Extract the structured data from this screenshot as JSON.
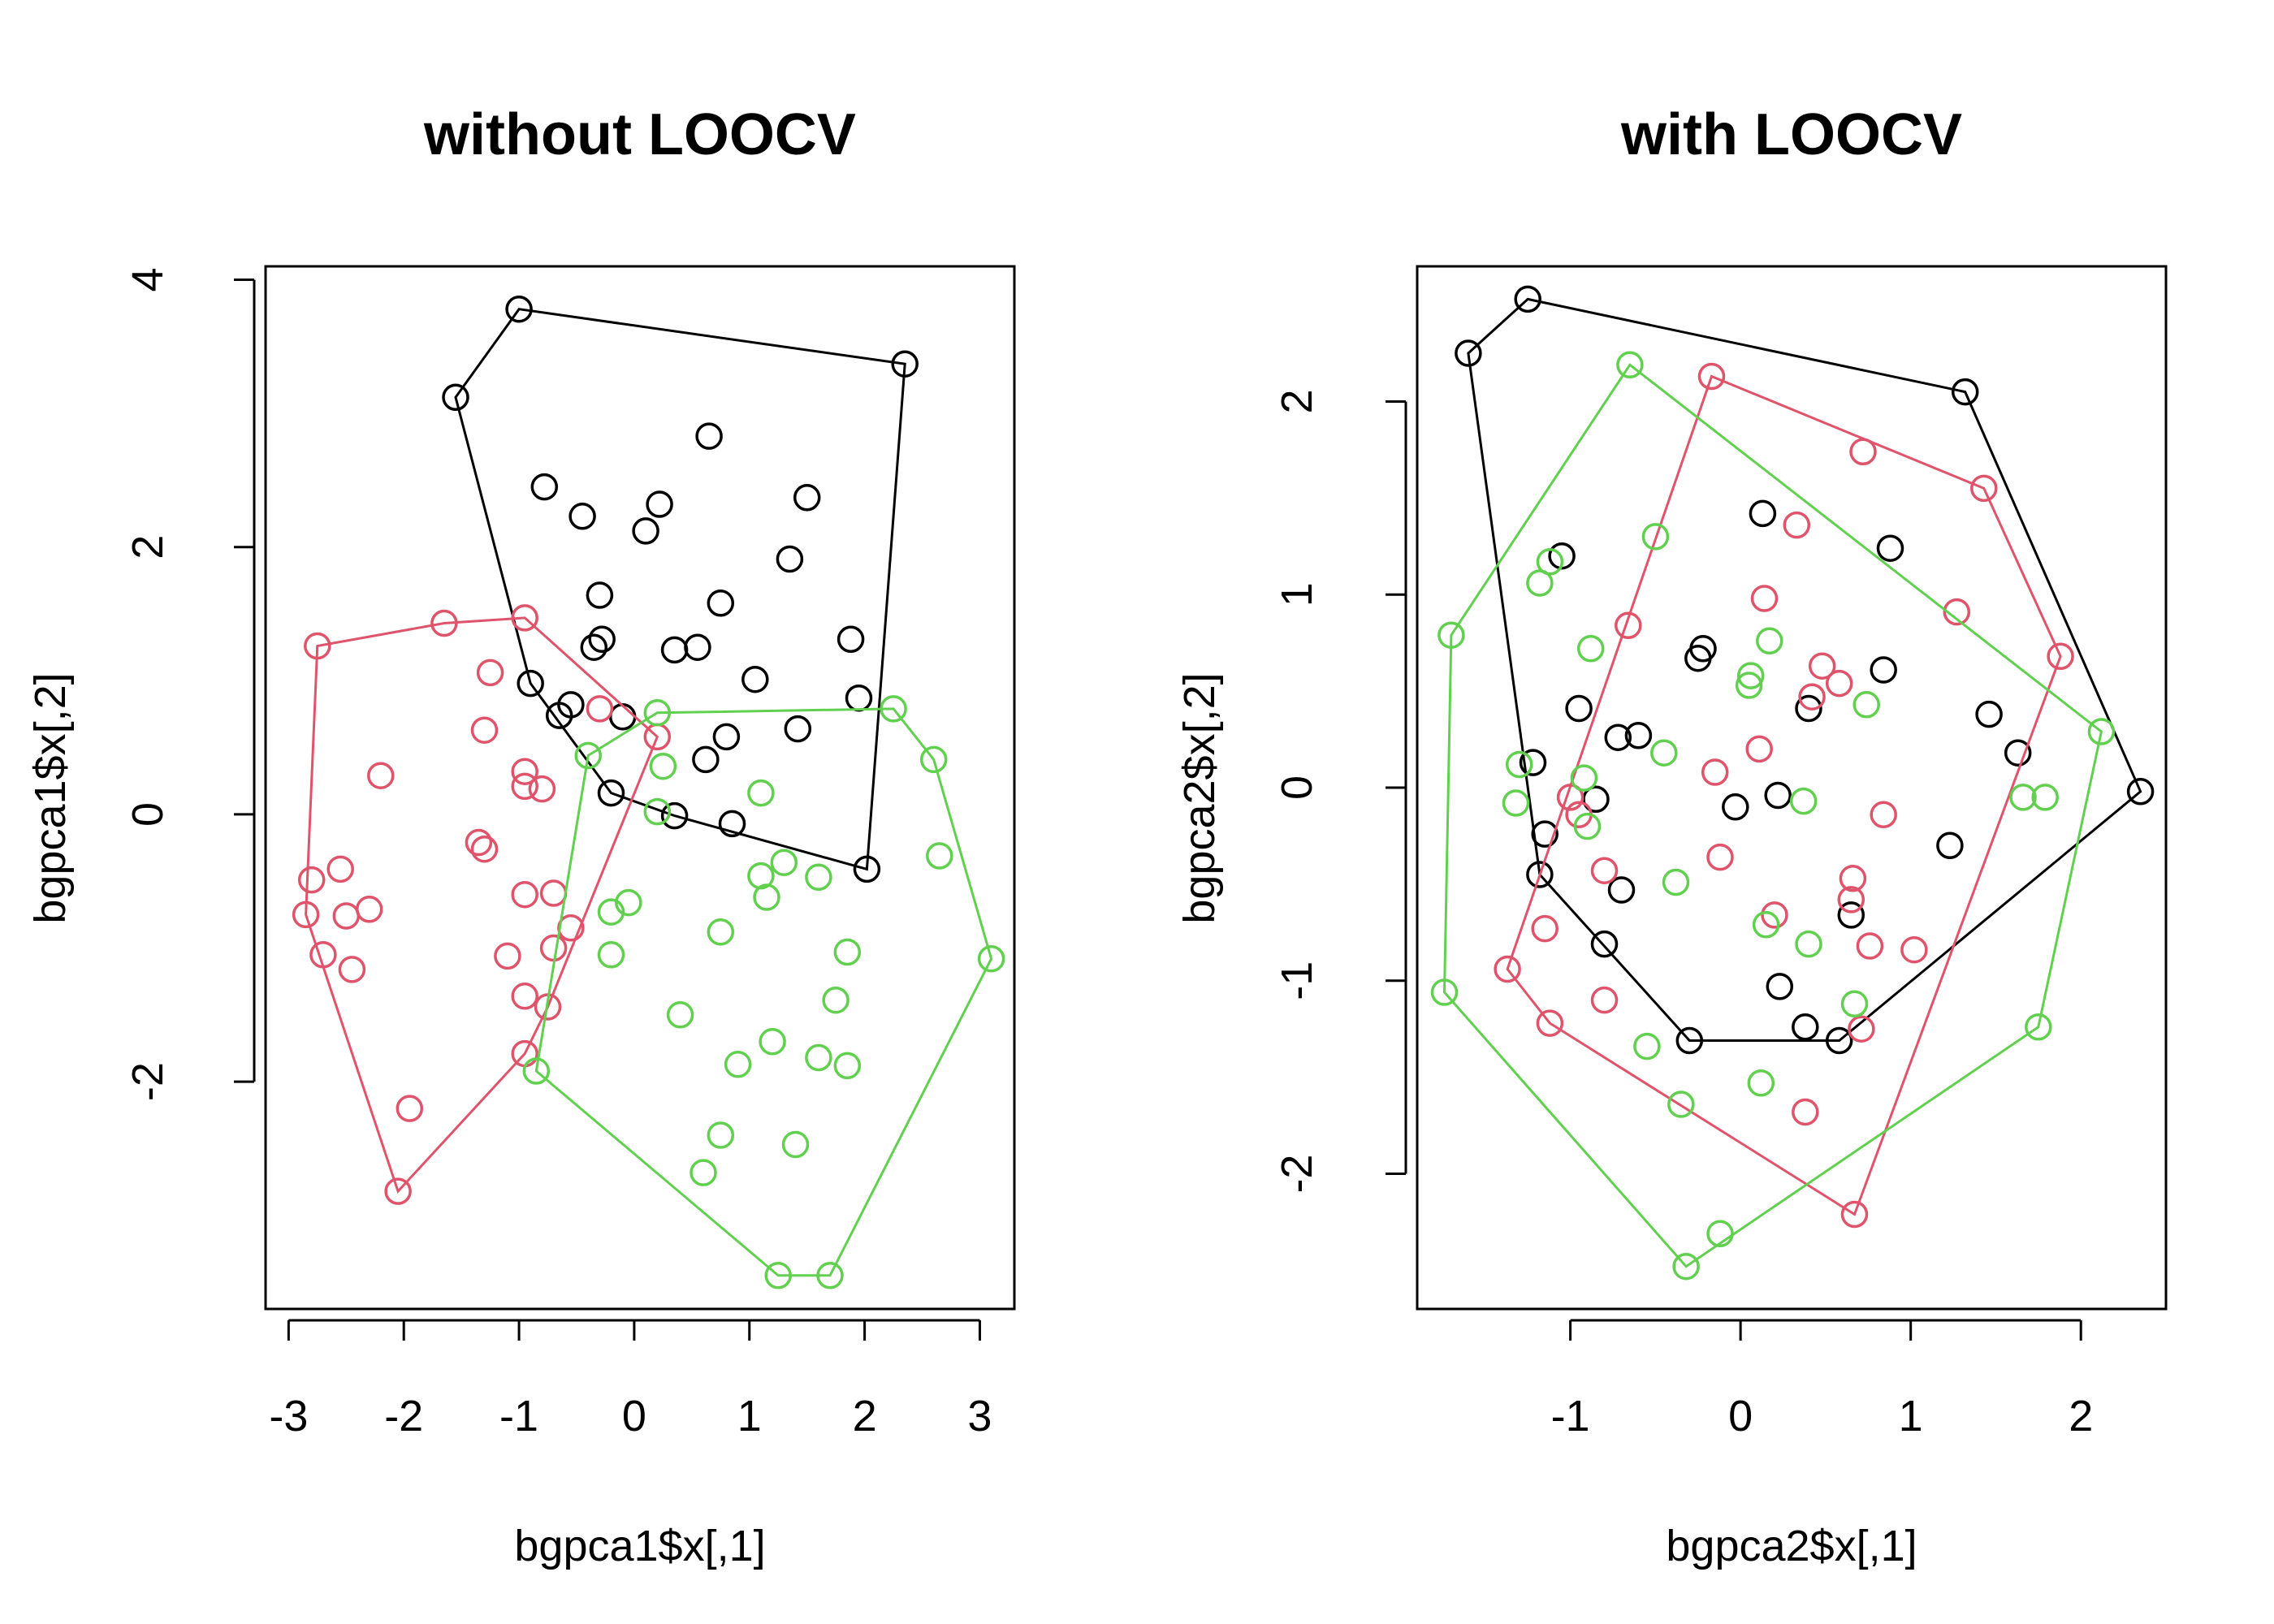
{
  "colors": {
    "series_1": "#000000",
    "series_2": "#DF536B",
    "series_3": "#61D04F",
    "axis": "#000000"
  },
  "chart_data": [
    {
      "type": "scatter",
      "title": "without LOOCV",
      "xlabel": "bgpca1$x[,1]",
      "ylabel": "bgpca1$x[,2]",
      "xlim": [
        -3.2,
        3.3
      ],
      "ylim": [
        -3.7,
        4.1
      ],
      "xticks": [
        -3,
        -2,
        -1,
        0,
        1,
        2,
        3
      ],
      "yticks": [
        -2,
        0,
        2,
        4
      ],
      "grid": false,
      "legend": "none",
      "convex_hulls": true,
      "series": [
        {
          "color": "#000000",
          "x": [
            -1.0,
            2.35,
            -1.55,
            0.65,
            -0.78,
            -0.45,
            0.1,
            0.22,
            1.5,
            1.35,
            -0.3,
            0.75,
            -0.35,
            -0.28,
            0.35,
            0.55,
            1.05,
            1.88,
            1.95,
            -0.9,
            -0.55,
            -0.65,
            -0.1,
            1.42,
            0.8,
            0.62,
            -0.2,
            0.35,
            0.85,
            2.02
          ],
          "y": [
            3.78,
            3.37,
            3.12,
            2.83,
            2.45,
            2.23,
            2.12,
            2.32,
            2.37,
            1.91,
            1.64,
            1.58,
            1.25,
            1.31,
            1.23,
            1.25,
            1.01,
            1.31,
            0.87,
            0.98,
            0.82,
            0.74,
            0.73,
            0.64,
            0.58,
            0.41,
            0.16,
            -0.01,
            -0.07,
            -0.41
          ]
        },
        {
          "color": "#DF536B",
          "x": [
            -2.75,
            -1.65,
            -0.95,
            -1.25,
            -2.2,
            -1.3,
            -0.95,
            -0.8,
            -0.95,
            -0.3,
            0.2,
            -1.35,
            -1.3,
            -2.55,
            -2.8,
            -2.3,
            -2.85,
            -2.5,
            -0.95,
            -0.7,
            -0.55,
            -2.7,
            -2.45,
            -1.1,
            -0.7,
            -0.95,
            -0.75,
            -0.95,
            -1.95,
            -2.05
          ],
          "y": [
            1.26,
            1.43,
            1.47,
            1.06,
            0.29,
            0.63,
            0.32,
            0.19,
            0.21,
            0.79,
            0.58,
            -0.21,
            -0.26,
            -0.41,
            -0.49,
            -0.71,
            -0.75,
            -0.76,
            -0.6,
            -0.59,
            -0.85,
            -1.05,
            -1.16,
            -1.06,
            -1.0,
            -1.36,
            -1.44,
            -1.79,
            -2.2,
            -2.82
          ]
        },
        {
          "color": "#61D04F",
          "x": [
            0.2,
            2.25,
            -0.4,
            0.25,
            2.6,
            1.1,
            0.2,
            2.65,
            1.3,
            1.1,
            1.6,
            1.15,
            -0.05,
            -0.2,
            0.75,
            -0.2,
            1.85,
            3.1,
            1.75,
            0.4,
            1.2,
            -0.85,
            0.9,
            1.6,
            1.85,
            0.75,
            1.4,
            0.6,
            1.25,
            1.7
          ],
          "y": [
            0.76,
            0.79,
            0.44,
            0.36,
            0.41,
            0.16,
            0.02,
            -0.31,
            -0.36,
            -0.46,
            -0.47,
            -0.62,
            -0.66,
            -0.73,
            -0.88,
            -1.05,
            -1.03,
            -1.08,
            -1.39,
            -1.5,
            -1.7,
            -1.92,
            -1.87,
            -1.82,
            -1.88,
            -2.4,
            -2.47,
            -2.68,
            -3.45,
            -3.45
          ]
        }
      ]
    },
    {
      "type": "scatter",
      "title": "with LOOCV",
      "xlabel": "bgpca2$x[,1]",
      "ylabel": "bgpca2$x[,2]",
      "xlim": [
        -1.9,
        2.5
      ],
      "ylim": [
        -2.7,
        2.7
      ],
      "xticks": [
        -1,
        0,
        1,
        2
      ],
      "yticks": [
        -2,
        -1,
        0,
        1,
        2
      ],
      "grid": false,
      "legend": "none",
      "convex_hulls": true,
      "series": [
        {
          "color": "#000000",
          "x": [
            -1.25,
            -1.6,
            1.32,
            0.13,
            -1.05,
            0.88,
            -0.95,
            -0.22,
            -0.25,
            0.84,
            0.4,
            -0.72,
            -0.6,
            1.46,
            1.63,
            -1.22,
            -0.85,
            0.22,
            -0.03,
            -1.15,
            1.23,
            -1.18,
            -0.7,
            0.65,
            -0.8,
            0.23,
            0.38,
            -0.3,
            0.58,
            2.35
          ],
          "y": [
            2.53,
            2.25,
            2.05,
            1.42,
            1.2,
            1.24,
            0.41,
            0.72,
            0.67,
            0.61,
            0.41,
            0.26,
            0.27,
            0.38,
            0.18,
            0.13,
            -0.06,
            -0.04,
            -0.1,
            -0.24,
            -0.3,
            -0.45,
            -0.53,
            -0.66,
            -0.81,
            -1.03,
            -1.24,
            -1.31,
            -1.31,
            -0.02
          ]
        },
        {
          "color": "#DF536B",
          "x": [
            -0.17,
            0.72,
            1.43,
            0.33,
            0.14,
            1.27,
            -0.66,
            0.48,
            0.58,
            0.42,
            0.11,
            -0.15,
            1.88,
            -1.0,
            -0.95,
            0.84,
            -0.12,
            -0.8,
            0.66,
            0.65,
            0.2,
            -1.15,
            0.76,
            1.02,
            -1.37,
            -0.8,
            -1.12,
            0.71,
            0.38,
            0.67
          ],
          "y": [
            2.13,
            1.74,
            1.55,
            1.36,
            0.98,
            0.91,
            0.84,
            0.63,
            0.54,
            0.47,
            0.2,
            0.08,
            0.68,
            -0.05,
            -0.14,
            -0.14,
            -0.36,
            -0.43,
            -0.47,
            -0.58,
            -0.66,
            -0.73,
            -0.82,
            -0.84,
            -0.94,
            -1.1,
            -1.22,
            -1.25,
            -1.68,
            -2.21
          ]
        },
        {
          "color": "#61D04F",
          "x": [
            -0.65,
            -1.7,
            -0.5,
            -1.12,
            -1.18,
            2.12,
            -0.88,
            0.17,
            0.06,
            0.05,
            0.74,
            -0.45,
            -1.3,
            -0.92,
            -1.32,
            -0.9,
            1.79,
            1.66,
            0.37,
            -0.38,
            0.15,
            0.4,
            -1.74,
            0.67,
            1.75,
            -0.55,
            0.12,
            -0.35,
            -0.12,
            -0.32
          ],
          "y": [
            2.19,
            0.79,
            1.3,
            1.17,
            1.06,
            0.29,
            0.72,
            0.76,
            0.58,
            0.53,
            0.43,
            0.18,
            0.12,
            0.05,
            -0.08,
            -0.2,
            -0.05,
            -0.05,
            -0.07,
            -0.49,
            -0.71,
            -0.81,
            -1.06,
            -1.12,
            -1.24,
            -1.34,
            -1.53,
            -1.64,
            -2.31,
            -2.48
          ]
        }
      ]
    }
  ]
}
